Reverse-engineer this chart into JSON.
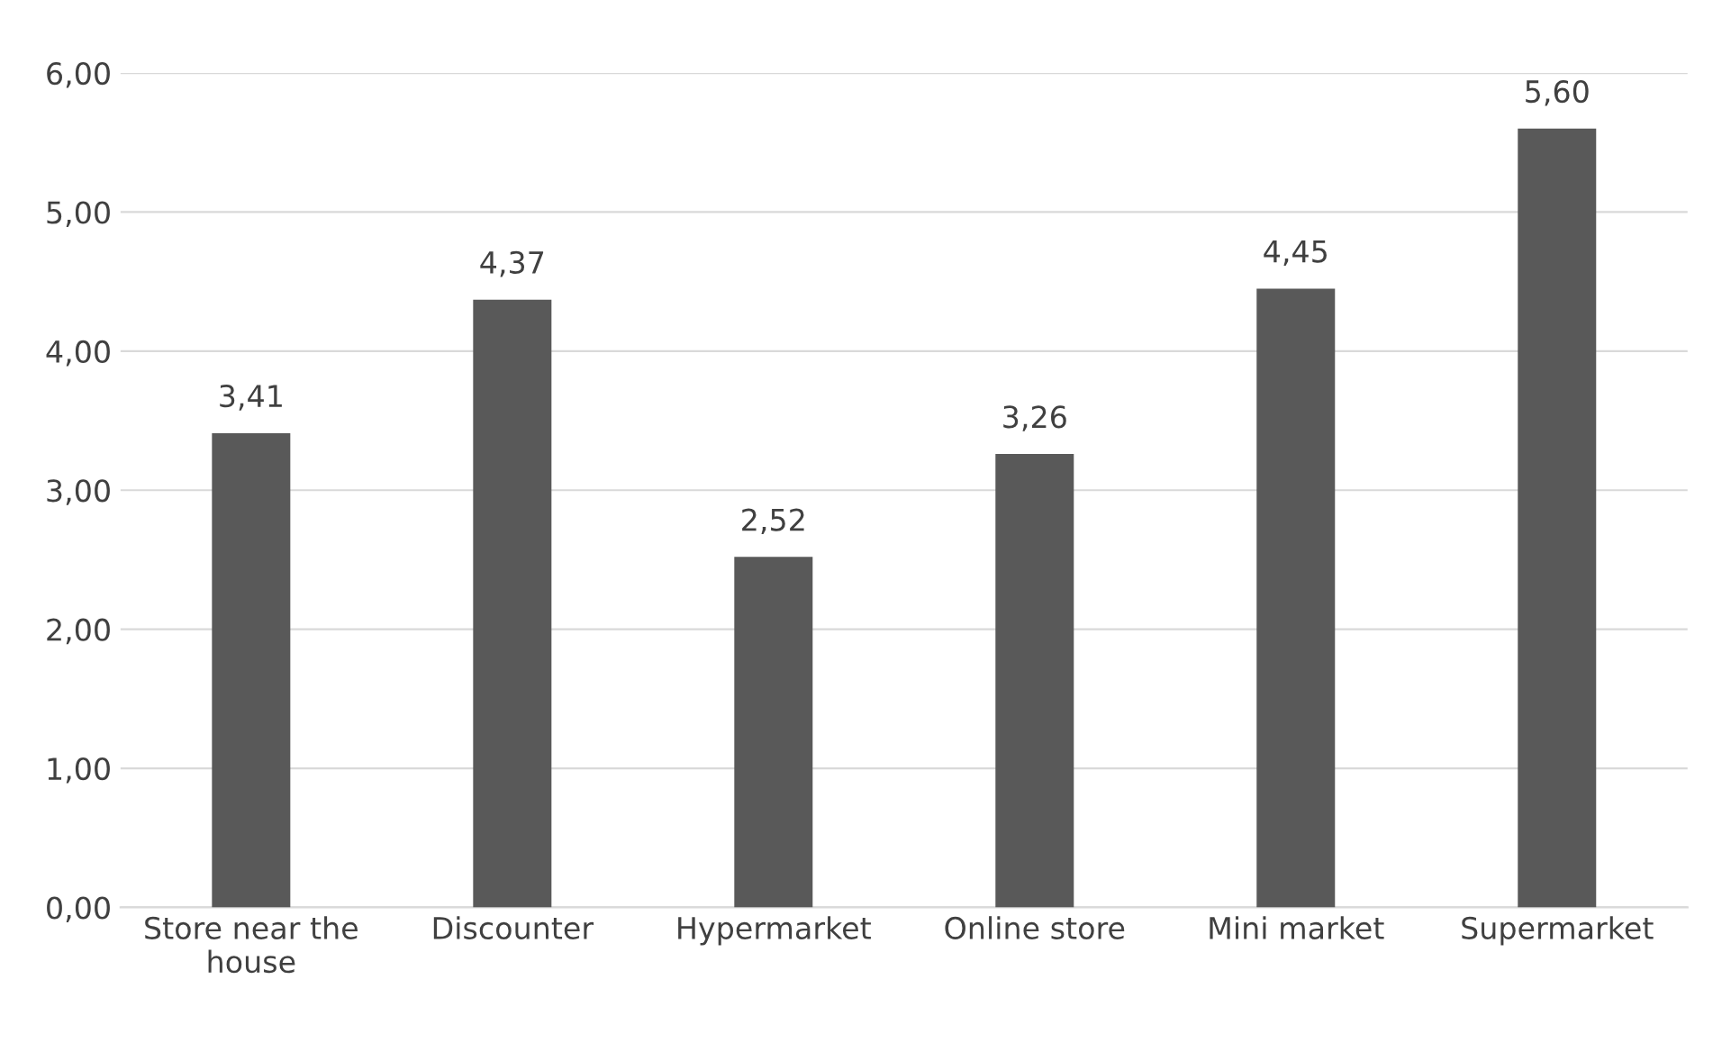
{
  "chart_data": {
    "type": "bar",
    "categories": [
      "Store near the house",
      "Discounter",
      "Hypermarket",
      "Online store",
      "Mini market",
      "Supermarket"
    ],
    "values": [
      3.41,
      4.37,
      2.52,
      3.26,
      4.45,
      5.6
    ],
    "value_labels": [
      "3,41",
      "4,37",
      "2,52",
      "3,26",
      "4,45",
      "5,60"
    ],
    "color": "#595959",
    "ylim": [
      0,
      6
    ],
    "yticks": [
      {
        "value": 0,
        "label": "0,00"
      },
      {
        "value": 1,
        "label": "1,00"
      },
      {
        "value": 2,
        "label": "2,00"
      },
      {
        "value": 3,
        "label": "3,00"
      },
      {
        "value": 4,
        "label": "4,00"
      },
      {
        "value": 5,
        "label": "5,00"
      },
      {
        "value": 6,
        "label": "6,00"
      }
    ],
    "grid": "y",
    "legend": false
  }
}
